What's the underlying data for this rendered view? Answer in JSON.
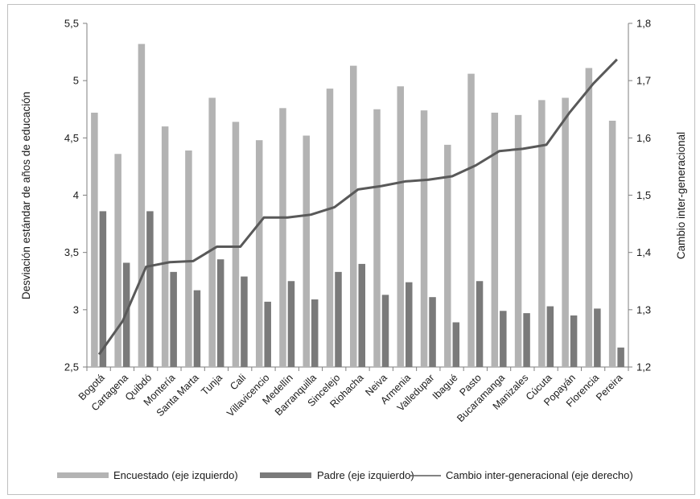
{
  "chart_data": {
    "type": "bar",
    "categories": [
      "Bogotá",
      "Cartagena",
      "Quibdó",
      "Montería",
      "Santa Marta",
      "Tunja",
      "Cali",
      "Villavicencio",
      "Medellín",
      "Barranquilla",
      "Sincelejo",
      "Riohacha",
      "Neiva",
      "Armenia",
      "Valledupar",
      "Ibagué",
      "Pasto",
      "Bucaramanga",
      "Manizales",
      "Cúcuta",
      "Popayán",
      "Florencia",
      "Pereira"
    ],
    "series": [
      {
        "name": "Encuestado (eje izquierdo)",
        "axis": "left",
        "kind": "bar",
        "color": "#b3b3b3",
        "values": [
          4.72,
          4.36,
          5.32,
          4.6,
          4.39,
          4.85,
          4.64,
          4.48,
          4.76,
          4.52,
          4.93,
          5.13,
          4.75,
          4.95,
          4.74,
          4.44,
          5.06,
          4.72,
          4.7,
          4.83,
          4.85,
          5.11,
          4.65
        ]
      },
      {
        "name": "Padre (eje izquierdo)",
        "axis": "left",
        "kind": "bar",
        "color": "#7a7a7a",
        "values": [
          3.86,
          3.41,
          3.86,
          3.33,
          3.17,
          3.44,
          3.29,
          3.07,
          3.25,
          3.09,
          3.33,
          3.4,
          3.13,
          3.24,
          3.11,
          2.89,
          3.25,
          2.99,
          2.97,
          3.03,
          2.95,
          3.01,
          2.67
        ]
      },
      {
        "name": "Cambio inter-generacional (eje derecho)",
        "axis": "right",
        "kind": "line",
        "color": "#595959",
        "values": [
          1.222,
          1.28,
          1.375,
          1.383,
          1.385,
          1.41,
          1.41,
          1.461,
          1.461,
          1.466,
          1.479,
          1.51,
          1.516,
          1.524,
          1.527,
          1.533,
          1.552,
          1.577,
          1.581,
          1.588,
          1.645,
          1.695,
          1.737
        ]
      }
    ],
    "yaxis_left": {
      "label": "Desviación estándar de años de educación",
      "min": 2.5,
      "max": 5.5,
      "ticks": [
        "2,5",
        "3",
        "3,5",
        "4",
        "4,5",
        "5",
        "5,5"
      ],
      "tick_values": [
        2.5,
        3,
        3.5,
        4,
        4.5,
        5,
        5.5
      ]
    },
    "yaxis_right": {
      "label": "Cambio inter-generacional",
      "min": 1.2,
      "max": 1.8,
      "ticks": [
        "1,2",
        "1,3",
        "1,4",
        "1,5",
        "1,6",
        "1,7",
        "1,8"
      ],
      "tick_values": [
        1.2,
        1.3,
        1.4,
        1.5,
        1.6,
        1.7,
        1.8
      ]
    },
    "grid": false,
    "legend_position": "bottom"
  }
}
